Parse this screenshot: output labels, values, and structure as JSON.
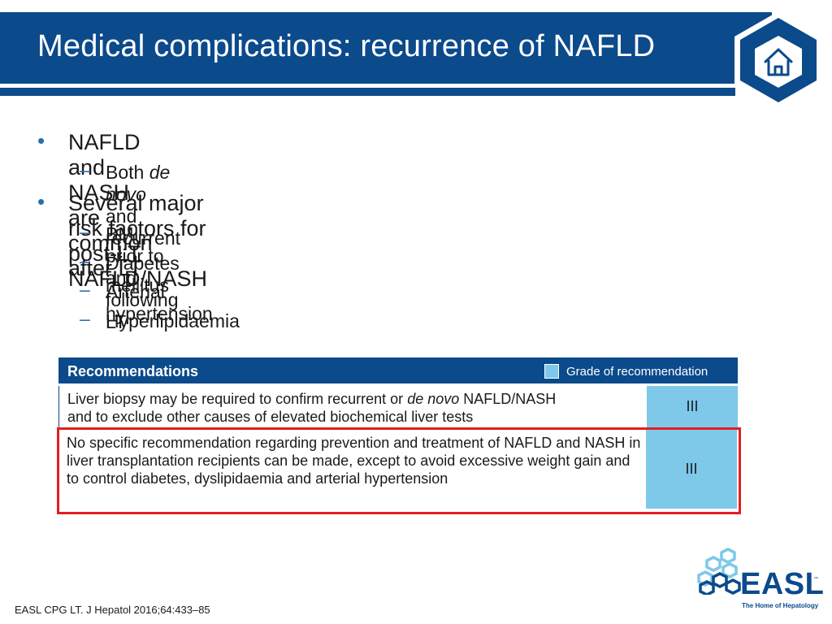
{
  "slide": {
    "title": "Medical complications: recurrence of NAFLD",
    "home_button": "home-icon"
  },
  "bullets": [
    {
      "text": "NAFLD and NASH are common after LT",
      "sub": [
        {
          "pre": "Both ",
          "em": "de novo",
          "post": " and recurrent"
        }
      ]
    },
    {
      "text": "Several major risk factors for post-LT NAFLD/NASH",
      "sub": [
        {
          "text": "BMI prior to and following LT"
        },
        {
          "text": "Diabetes mellitus"
        },
        {
          "text": "Arterial hypertension"
        },
        {
          "text": "Hyperlipidaemia"
        }
      ]
    }
  ],
  "recommendations": {
    "header": "Recommendations",
    "grade_label": "Grade of recommendation",
    "rows": [
      {
        "line1_pre": "Liver biopsy may be required to confirm recurrent or ",
        "line1_em": "de novo",
        "line1_post": " NAFLD/NASH",
        "line2": "and to exclude other causes of elevated biochemical liver tests",
        "grade": "III"
      },
      {
        "text": "No specific recommendation regarding prevention and treatment of NAFLD and NASH in liver transplantation recipients can be made, except to avoid excessive weight gain and to control diabetes, dyslipidaemia and arterial hypertension",
        "grade": "III"
      }
    ]
  },
  "footer": {
    "reference": "EASL CPG LT. J Hepatol 2016;64:433–85"
  },
  "logo": {
    "word": "EASL",
    "tm": "™",
    "tagline": "The Home of Hepatology"
  },
  "colors": {
    "primary": "#0b4a8b",
    "accent_light": "#7ec8ea",
    "highlight": "#e41e1e",
    "bullet": "#2a6cb0"
  }
}
